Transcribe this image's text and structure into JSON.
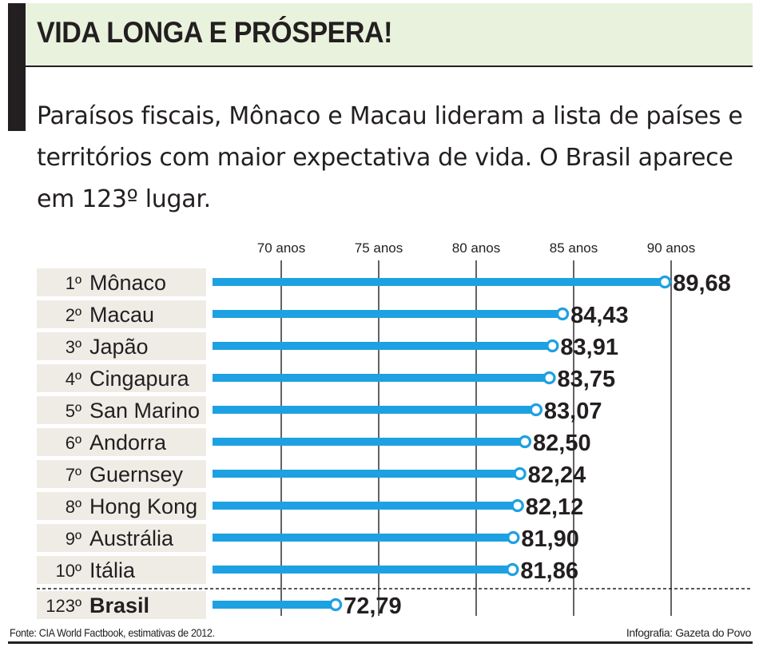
{
  "header": {
    "title": "VIDA LONGA E PRÓSPERA!",
    "subtitle": "Paraísos fiscais, Mônaco e Macau lideram a lista de países e territórios com maior expectativa de vida. O Brasil aparece em 123º lugar."
  },
  "colors": {
    "bar": "#1da1e2",
    "label_bg": "#efece6",
    "title_bg": "#e9f2dc",
    "text": "#231f20"
  },
  "chart_data": {
    "type": "bar",
    "orientation": "horizontal",
    "x_ticks": [
      {
        "value": 70,
        "label": "70 anos"
      },
      {
        "value": 75,
        "label": "75 anos"
      },
      {
        "value": 80,
        "label": "80 anos"
      },
      {
        "value": 85,
        "label": "85 anos"
      },
      {
        "value": 90,
        "label": "90 anos"
      }
    ],
    "rows": [
      {
        "rank": "1º",
        "name": "Mônaco",
        "value": 89.68,
        "label": "89,68"
      },
      {
        "rank": "2º",
        "name": "Macau",
        "value": 84.43,
        "label": "84,43"
      },
      {
        "rank": "3º",
        "name": "Japão",
        "value": 83.91,
        "label": "83,91"
      },
      {
        "rank": "4º",
        "name": "Cingapura",
        "value": 83.75,
        "label": "83,75"
      },
      {
        "rank": "5º",
        "name": "San Marino",
        "value": 83.07,
        "label": "83,07"
      },
      {
        "rank": "6º",
        "name": "Andorra",
        "value": 82.5,
        "label": "82,50"
      },
      {
        "rank": "7º",
        "name": "Guernsey",
        "value": 82.24,
        "label": "82,24"
      },
      {
        "rank": "8º",
        "name": "Hong Kong",
        "value": 82.12,
        "label": "82,12"
      },
      {
        "rank": "9º",
        "name": "Austrália",
        "value": 81.9,
        "label": "81,90"
      },
      {
        "rank": "10º",
        "name": "Itália",
        "value": 81.86,
        "label": "81,86"
      }
    ],
    "highlight": {
      "rank": "123º",
      "name": "Brasil",
      "value": 72.79,
      "label": "72,79"
    }
  },
  "footer": {
    "source": "Fonte: CIA World Factbook, estimativas de 2012.",
    "credit": "Infografia: Gazeta do Povo"
  }
}
